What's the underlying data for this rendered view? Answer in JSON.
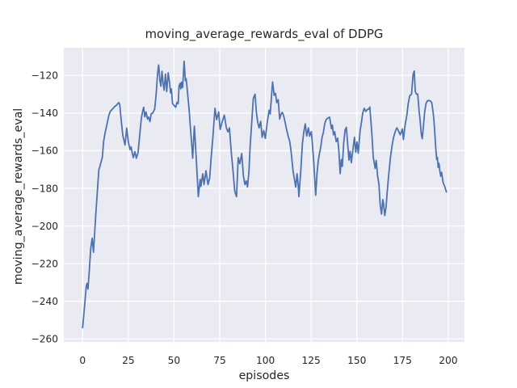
{
  "figure": {
    "title": "moving_average_rewards_eval of DDPG",
    "xlabel": "episodes",
    "ylabel": "moving_average_rewards_eval",
    "colors": {
      "line": "#4c72b0",
      "axes_bg": "#eaeaf2",
      "grid": "#ffffff",
      "fig_bg": "#ffffff",
      "text": "#262626"
    }
  },
  "chart_data": {
    "type": "line",
    "title": "moving_average_rewards_eval of DDPG",
    "xlabel": "episodes",
    "ylabel": "moving_average_rewards_eval",
    "x_ticks": [
      0,
      25,
      50,
      75,
      100,
      125,
      150,
      175,
      200
    ],
    "y_ticks": [
      -120,
      -140,
      -160,
      -180,
      -200,
      -220,
      -240,
      -260
    ],
    "xlim": [
      -10.3,
      208.9
    ],
    "ylim": [
      -261.6,
      -105.3
    ],
    "grid": true,
    "legend_position": "none",
    "series": [
      {
        "name": "moving_average_rewards_eval",
        "color": "#4c72b0",
        "points": [
          [
            0,
            -254
          ],
          [
            1,
            -243
          ],
          [
            2,
            -232
          ],
          [
            2.4,
            -230.5
          ],
          [
            2.9,
            -233.5
          ],
          [
            3.6,
            -224
          ],
          [
            4.4,
            -212
          ],
          [
            5.2,
            -206.5
          ],
          [
            5.9,
            -214
          ],
          [
            6.5,
            -205
          ],
          [
            7.1,
            -195
          ],
          [
            8.3,
            -178
          ],
          [
            8.9,
            -170
          ],
          [
            9.4,
            -168.5
          ],
          [
            10.8,
            -163.5
          ],
          [
            11.5,
            -155
          ],
          [
            12.2,
            -151
          ],
          [
            13.3,
            -146
          ],
          [
            14.4,
            -141
          ],
          [
            15.2,
            -139
          ],
          [
            16.2,
            -138
          ],
          [
            17.4,
            -136.7
          ],
          [
            18.6,
            -135.8
          ],
          [
            19.7,
            -134.5
          ],
          [
            20.3,
            -135.3
          ],
          [
            21.2,
            -145
          ],
          [
            22,
            -152
          ],
          [
            23.2,
            -157
          ],
          [
            24.1,
            -148
          ],
          [
            25,
            -155.4
          ],
          [
            25.9,
            -159.4
          ],
          [
            26.5,
            -158
          ],
          [
            27.1,
            -161
          ],
          [
            27.7,
            -163.7
          ],
          [
            28.6,
            -160.5
          ],
          [
            29.4,
            -164
          ],
          [
            30.3,
            -161
          ],
          [
            31.1,
            -153
          ],
          [
            32.1,
            -143
          ],
          [
            32.9,
            -138.6
          ],
          [
            33.4,
            -137
          ],
          [
            34,
            -142
          ],
          [
            34.7,
            -139.5
          ],
          [
            35.5,
            -143.2
          ],
          [
            36.1,
            -142.2
          ],
          [
            36.8,
            -144.6
          ],
          [
            37.5,
            -140.4
          ],
          [
            38.3,
            -140.1
          ],
          [
            39.4,
            -137.9
          ],
          [
            40.2,
            -130
          ],
          [
            41,
            -119
          ],
          [
            41.6,
            -114.5
          ],
          [
            42.3,
            -123
          ],
          [
            42.8,
            -125.8
          ],
          [
            43.4,
            -117.8
          ],
          [
            44.1,
            -125
          ],
          [
            44.6,
            -127.9
          ],
          [
            45.3,
            -119.3
          ],
          [
            46,
            -128.6
          ],
          [
            46.8,
            -118.6
          ],
          [
            47.6,
            -124.4
          ],
          [
            48.1,
            -129.3
          ],
          [
            48.5,
            -127.2
          ],
          [
            49.2,
            -135
          ],
          [
            50.1,
            -136.1
          ],
          [
            50.9,
            -136.9
          ],
          [
            51.6,
            -134.3
          ],
          [
            52.3,
            -135
          ],
          [
            52.7,
            -125.8
          ],
          [
            53.3,
            -124.3
          ],
          [
            53.7,
            -127.2
          ],
          [
            54.1,
            -123.6
          ],
          [
            54.7,
            -126.5
          ],
          [
            55.5,
            -112.5
          ],
          [
            56.2,
            -122.9
          ],
          [
            56.6,
            -121.7
          ],
          [
            57.2,
            -127.2
          ],
          [
            58.3,
            -138.6
          ],
          [
            58.9,
            -147.2
          ],
          [
            59.6,
            -155.8
          ],
          [
            60.2,
            -164
          ],
          [
            61.1,
            -147
          ],
          [
            62.1,
            -163
          ],
          [
            63.3,
            -184.4
          ],
          [
            64.3,
            -175.2
          ],
          [
            64.7,
            -179
          ],
          [
            65.7,
            -172.3
          ],
          [
            66.4,
            -178
          ],
          [
            67.5,
            -170.6
          ],
          [
            68.6,
            -178
          ],
          [
            69.5,
            -174.4
          ],
          [
            70.3,
            -163.7
          ],
          [
            71.3,
            -152.5
          ],
          [
            72.4,
            -137.5
          ],
          [
            73.3,
            -143.5
          ],
          [
            74.4,
            -139.5
          ],
          [
            75.2,
            -148.7
          ],
          [
            76.3,
            -144.8
          ],
          [
            77.5,
            -141.1
          ],
          [
            78.6,
            -147.9
          ],
          [
            79.5,
            -150
          ],
          [
            80.3,
            -147.9
          ],
          [
            81.3,
            -160.8
          ],
          [
            82.3,
            -170.9
          ],
          [
            83.2,
            -181.6
          ],
          [
            84.2,
            -184.4
          ],
          [
            85.1,
            -163.7
          ],
          [
            86,
            -166.9
          ],
          [
            87,
            -161.5
          ],
          [
            88,
            -173.7
          ],
          [
            88.8,
            -178
          ],
          [
            89.5,
            -176
          ],
          [
            90.2,
            -179.3
          ],
          [
            91,
            -171
          ],
          [
            91.6,
            -158
          ],
          [
            92.5,
            -145.1
          ],
          [
            93.4,
            -132.2
          ],
          [
            94.3,
            -130
          ],
          [
            95.1,
            -140.1
          ],
          [
            95.8,
            -145.1
          ],
          [
            96.5,
            -147.9
          ],
          [
            97.4,
            -144.4
          ],
          [
            98.2,
            -152.9
          ],
          [
            99.1,
            -149.3
          ],
          [
            99.9,
            -153.5
          ],
          [
            101,
            -145
          ],
          [
            102,
            -138.5
          ],
          [
            102.6,
            -140.5
          ],
          [
            103.9,
            -123.5
          ],
          [
            104.8,
            -130.6
          ],
          [
            105.5,
            -129.5
          ],
          [
            106.2,
            -134.5
          ],
          [
            107,
            -132.9
          ],
          [
            107.8,
            -143.2
          ],
          [
            108.4,
            -140.9
          ],
          [
            109.2,
            -139.6
          ],
          [
            110,
            -141.5
          ],
          [
            110.8,
            -145.1
          ],
          [
            111.7,
            -149.4
          ],
          [
            112.5,
            -152.5
          ],
          [
            113.3,
            -155.2
          ],
          [
            114.1,
            -161
          ],
          [
            115.1,
            -170.9
          ],
          [
            116.1,
            -176.6
          ],
          [
            116.6,
            -179.4
          ],
          [
            117.3,
            -172.3
          ],
          [
            117.9,
            -178
          ],
          [
            118.3,
            -184.4
          ],
          [
            119.3,
            -171
          ],
          [
            120.2,
            -156.5
          ],
          [
            121,
            -150
          ],
          [
            121.8,
            -145.8
          ],
          [
            122.6,
            -152.2
          ],
          [
            123.5,
            -147.9
          ],
          [
            124.2,
            -152.3
          ],
          [
            125.1,
            -149.9
          ],
          [
            125.8,
            -158
          ],
          [
            126.5,
            -166.5
          ],
          [
            127.1,
            -177.5
          ],
          [
            127.5,
            -183.7
          ],
          [
            128.2,
            -172.3
          ],
          [
            128.9,
            -165.2
          ],
          [
            129.6,
            -161.2
          ],
          [
            130.3,
            -158
          ],
          [
            131,
            -152.9
          ],
          [
            131.7,
            -150.4
          ],
          [
            132.4,
            -145.8
          ],
          [
            133.3,
            -143.4
          ],
          [
            134.2,
            -142.6
          ],
          [
            135.1,
            -142.2
          ],
          [
            136.1,
            -148.3
          ],
          [
            136.6,
            -146.4
          ],
          [
            137.2,
            -151.6
          ],
          [
            137.9,
            -149.9
          ],
          [
            138.7,
            -155.2
          ],
          [
            139.5,
            -153.4
          ],
          [
            140.2,
            -160.2
          ],
          [
            140.9,
            -172.2
          ],
          [
            141.5,
            -164.7
          ],
          [
            142.1,
            -168.3
          ],
          [
            142.8,
            -156.2
          ],
          [
            143.6,
            -149
          ],
          [
            144.3,
            -147.6
          ],
          [
            145,
            -156.7
          ],
          [
            145.7,
            -165
          ],
          [
            146.3,
            -160.3
          ],
          [
            147,
            -166.4
          ],
          [
            148,
            -158.3
          ],
          [
            148.7,
            -152.9
          ],
          [
            149.4,
            -160.8
          ],
          [
            150.1,
            -155.4
          ],
          [
            150.8,
            -161.4
          ],
          [
            151.8,
            -149.3
          ],
          [
            152.5,
            -145.1
          ],
          [
            153.2,
            -140.1
          ],
          [
            154,
            -137.5
          ],
          [
            154.9,
            -139.2
          ],
          [
            155.7,
            -138.2
          ],
          [
            156.5,
            -137.9
          ],
          [
            157.1,
            -136.8
          ],
          [
            157.7,
            -144
          ],
          [
            158.3,
            -152.1
          ],
          [
            159,
            -163.7
          ],
          [
            159.6,
            -166.6
          ],
          [
            160,
            -169.4
          ],
          [
            160.6,
            -165.2
          ],
          [
            161.4,
            -173.7
          ],
          [
            162.1,
            -177.8
          ],
          [
            162.8,
            -189.2
          ],
          [
            163.5,
            -193.7
          ],
          [
            164.2,
            -186
          ],
          [
            164.6,
            -188.1
          ],
          [
            165.3,
            -194.5
          ],
          [
            166,
            -190
          ],
          [
            166.7,
            -181
          ],
          [
            167.5,
            -172.4
          ],
          [
            168.4,
            -163.4
          ],
          [
            169.4,
            -156.6
          ],
          [
            170.1,
            -152.9
          ],
          [
            171.2,
            -149.3
          ],
          [
            171.9,
            -147.9
          ],
          [
            172.7,
            -149.4
          ],
          [
            173.7,
            -151.6
          ],
          [
            174.9,
            -148.5
          ],
          [
            175.5,
            -154.1
          ],
          [
            176.5,
            -145.8
          ],
          [
            177.4,
            -141
          ],
          [
            178.1,
            -135.1
          ],
          [
            179,
            -130.7
          ],
          [
            179.9,
            -130.1
          ],
          [
            180.8,
            -119.4
          ],
          [
            181.4,
            -117.7
          ],
          [
            182,
            -128.6
          ],
          [
            182.6,
            -130
          ],
          [
            183.3,
            -129.9
          ],
          [
            184.1,
            -139.4
          ],
          [
            184.6,
            -143.6
          ],
          [
            185.3,
            -151.4
          ],
          [
            185.8,
            -153.7
          ],
          [
            186.5,
            -146.4
          ],
          [
            187.1,
            -139.4
          ],
          [
            187.8,
            -135.1
          ],
          [
            188.5,
            -133.7
          ],
          [
            189.3,
            -133.3
          ],
          [
            190.3,
            -133.7
          ],
          [
            191,
            -134.6
          ],
          [
            191.7,
            -139.4
          ],
          [
            192.2,
            -143.9
          ],
          [
            192.7,
            -150.9
          ],
          [
            193.2,
            -159
          ],
          [
            193.7,
            -164.7
          ],
          [
            194.1,
            -163.6
          ],
          [
            194.5,
            -168.9
          ],
          [
            195,
            -166.8
          ],
          [
            195.4,
            -170.8
          ],
          [
            195.9,
            -173.6
          ],
          [
            196.4,
            -171.5
          ],
          [
            197.1,
            -176.5
          ],
          [
            197.6,
            -177.9
          ],
          [
            198.2,
            -179.4
          ],
          [
            199,
            -181.9
          ]
        ]
      }
    ]
  }
}
